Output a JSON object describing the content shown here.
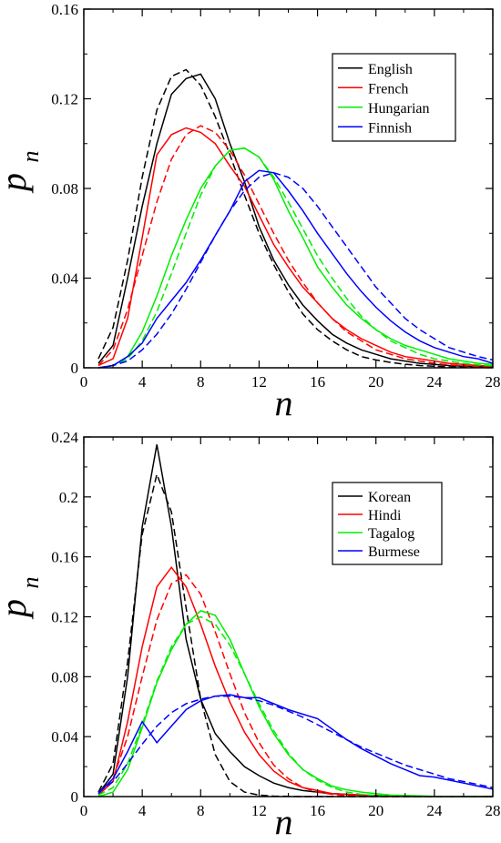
{
  "chart_data": [
    {
      "type": "line",
      "xlabel": "n",
      "ylabel": "p",
      "ylabel_sub": "n",
      "xlim": [
        0,
        28
      ],
      "ylim": [
        0,
        0.16
      ],
      "xticks": [
        0,
        4,
        8,
        12,
        16,
        20,
        24,
        28
      ],
      "yticks": [
        0,
        0.04,
        0.08,
        0.12,
        0.16
      ],
      "xtick_labels": [
        "0",
        "4",
        "8",
        "12",
        "16",
        "20",
        "24",
        "28"
      ],
      "ytick_labels": [
        "0",
        "0.04",
        "0.08",
        "0.12",
        "0.16"
      ],
      "legend_position": "top-right",
      "series": [
        {
          "name": "English",
          "color": "#000000",
          "x": [
            1,
            2,
            3,
            4,
            5,
            6,
            7,
            8,
            9,
            10,
            11,
            12,
            13,
            14,
            15,
            16,
            17,
            18,
            19,
            20,
            21,
            22,
            23,
            24,
            25,
            26,
            27,
            28
          ],
          "y": [
            0.002,
            0.01,
            0.04,
            0.072,
            0.1,
            0.122,
            0.129,
            0.131,
            0.12,
            0.1,
            0.083,
            0.063,
            0.048,
            0.037,
            0.028,
            0.021,
            0.015,
            0.011,
            0.008,
            0.006,
            0.004,
            0.003,
            0.002,
            0.0015,
            0.001,
            0.0007,
            0.0005,
            0.0003
          ],
          "fit": [
            0.004,
            0.018,
            0.048,
            0.085,
            0.115,
            0.13,
            0.133,
            0.126,
            0.112,
            0.095,
            0.077,
            0.06,
            0.046,
            0.034,
            0.024,
            0.017,
            0.012,
            0.008,
            0.005,
            0.0035,
            0.0024,
            0.0016,
            0.001,
            0.0007,
            0.0004,
            0.0003,
            0.0002,
            0.0001
          ]
        },
        {
          "name": "French",
          "color": "#ff0000",
          "x": [
            1,
            2,
            3,
            4,
            5,
            6,
            7,
            8,
            9,
            10,
            11,
            12,
            13,
            14,
            15,
            16,
            17,
            18,
            19,
            20,
            21,
            22,
            23,
            24,
            25,
            26,
            27,
            28
          ],
          "y": [
            0.001,
            0.004,
            0.022,
            0.058,
            0.095,
            0.104,
            0.107,
            0.105,
            0.1,
            0.09,
            0.081,
            0.068,
            0.055,
            0.045,
            0.036,
            0.029,
            0.022,
            0.017,
            0.013,
            0.01,
            0.007,
            0.005,
            0.004,
            0.003,
            0.002,
            0.0015,
            0.001,
            0.0007
          ],
          "fit": [
            0.001,
            0.008,
            0.026,
            0.05,
            0.074,
            0.093,
            0.104,
            0.108,
            0.105,
            0.097,
            0.086,
            0.073,
            0.06,
            0.048,
            0.038,
            0.029,
            0.022,
            0.016,
            0.012,
            0.008,
            0.006,
            0.004,
            0.003,
            0.002,
            0.0013,
            0.0009,
            0.0006,
            0.0004
          ]
        },
        {
          "name": "Hungarian",
          "color": "#00ee00",
          "x": [
            1,
            2,
            3,
            4,
            5,
            6,
            7,
            8,
            9,
            10,
            11,
            12,
            13,
            14,
            15,
            16,
            17,
            18,
            19,
            20,
            21,
            22,
            23,
            24,
            25,
            26,
            27,
            28
          ],
          "y": [
            0.0,
            0.001,
            0.005,
            0.016,
            0.032,
            0.05,
            0.066,
            0.08,
            0.09,
            0.097,
            0.098,
            0.094,
            0.084,
            0.07,
            0.058,
            0.045,
            0.036,
            0.028,
            0.022,
            0.017,
            0.013,
            0.01,
            0.008,
            0.006,
            0.004,
            0.003,
            0.002,
            0.0015
          ],
          "fit": [
            0.0,
            0.001,
            0.004,
            0.012,
            0.025,
            0.042,
            0.06,
            0.077,
            0.09,
            0.097,
            0.098,
            0.094,
            0.085,
            0.074,
            0.062,
            0.05,
            0.04,
            0.031,
            0.023,
            0.017,
            0.012,
            0.009,
            0.006,
            0.004,
            0.003,
            0.002,
            0.0013,
            0.0009
          ]
        },
        {
          "name": "Finnish",
          "color": "#0000ff",
          "x": [
            1,
            2,
            3,
            4,
            5,
            6,
            7,
            8,
            9,
            10,
            11,
            12,
            13,
            14,
            15,
            16,
            17,
            18,
            19,
            20,
            21,
            22,
            23,
            24,
            25,
            26,
            27,
            28
          ],
          "y": [
            0.0,
            0.001,
            0.005,
            0.011,
            0.022,
            0.03,
            0.038,
            0.048,
            0.059,
            0.07,
            0.083,
            0.088,
            0.087,
            0.079,
            0.07,
            0.06,
            0.051,
            0.042,
            0.034,
            0.027,
            0.021,
            0.016,
            0.012,
            0.009,
            0.007,
            0.005,
            0.004,
            0.002
          ],
          "fit": [
            0.0,
            0.001,
            0.003,
            0.008,
            0.015,
            0.024,
            0.035,
            0.047,
            0.059,
            0.07,
            0.079,
            0.085,
            0.087,
            0.085,
            0.08,
            0.072,
            0.063,
            0.054,
            0.045,
            0.036,
            0.029,
            0.022,
            0.017,
            0.013,
            0.009,
            0.007,
            0.005,
            0.0035
          ]
        }
      ]
    },
    {
      "type": "line",
      "xlabel": "n",
      "ylabel": "p",
      "ylabel_sub": "n",
      "xlim": [
        0,
        28
      ],
      "ylim": [
        0,
        0.24
      ],
      "xticks": [
        0,
        4,
        8,
        12,
        16,
        20,
        24,
        28
      ],
      "yticks": [
        0,
        0.04,
        0.08,
        0.12,
        0.16,
        0.2,
        0.24
      ],
      "xtick_labels": [
        "0",
        "4",
        "8",
        "12",
        "16",
        "20",
        "24",
        "28"
      ],
      "ytick_labels": [
        "0",
        "0.04",
        "0.08",
        "0.12",
        "0.16",
        "0.2",
        "0.24"
      ],
      "legend_position": "top-right",
      "series": [
        {
          "name": "Korean",
          "color": "#000000",
          "x": [
            1,
            2,
            3,
            4,
            5,
            6,
            7,
            8,
            9,
            10,
            11,
            12,
            13,
            14,
            15,
            16,
            17,
            18,
            19,
            20,
            21,
            22,
            23,
            24,
            25,
            26,
            27,
            28
          ],
          "y": [
            0.002,
            0.015,
            0.08,
            0.18,
            0.235,
            0.18,
            0.105,
            0.065,
            0.042,
            0.03,
            0.02,
            0.014,
            0.009,
            0.006,
            0.004,
            0.003,
            0.002,
            0.0015,
            0.001,
            0.0007,
            0.0005,
            0.0003,
            0.0002,
            0.0001,
            0.0001,
            0.0,
            0.0,
            0.0
          ],
          "fit": [
            0.003,
            0.022,
            0.09,
            0.175,
            0.215,
            0.19,
            0.126,
            0.065,
            0.028,
            0.01,
            0.003,
            0.001,
            0.0003,
            0.0001,
            0.0,
            0.0,
            0.0,
            0.0,
            0.0,
            0.0,
            0.0,
            0.0,
            0.0,
            0.0,
            0.0,
            0.0,
            0.0,
            0.0
          ]
        },
        {
          "name": "Hindi",
          "color": "#ff0000",
          "x": [
            1,
            2,
            3,
            4,
            5,
            6,
            7,
            8,
            9,
            10,
            11,
            12,
            13,
            14,
            15,
            16,
            17,
            18,
            19,
            20,
            21,
            22,
            23,
            24,
            25,
            26,
            27,
            28
          ],
          "y": [
            0.001,
            0.01,
            0.05,
            0.1,
            0.14,
            0.153,
            0.14,
            0.115,
            0.087,
            0.063,
            0.043,
            0.028,
            0.017,
            0.01,
            0.006,
            0.004,
            0.002,
            0.0015,
            0.001,
            0.0005,
            0.0003,
            0.0002,
            0.0001,
            0.0,
            0.0,
            0.0,
            0.0,
            0.0
          ],
          "fit": [
            0.002,
            0.012,
            0.04,
            0.08,
            0.118,
            0.142,
            0.148,
            0.135,
            0.11,
            0.082,
            0.056,
            0.036,
            0.021,
            0.012,
            0.006,
            0.003,
            0.0015,
            0.0007,
            0.0003,
            0.0001,
            0.0,
            0.0,
            0.0,
            0.0,
            0.0,
            0.0,
            0.0,
            0.0
          ]
        },
        {
          "name": "Tagalog",
          "color": "#00ee00",
          "x": [
            1,
            2,
            3,
            4,
            5,
            6,
            7,
            8,
            9,
            10,
            11,
            12,
            13,
            14,
            15,
            16,
            17,
            18,
            19,
            20,
            21,
            22,
            23,
            24,
            25,
            26,
            27,
            28
          ],
          "y": [
            0.0,
            0.003,
            0.018,
            0.046,
            0.076,
            0.098,
            0.115,
            0.124,
            0.121,
            0.105,
            0.082,
            0.06,
            0.042,
            0.028,
            0.018,
            0.012,
            0.007,
            0.0045,
            0.003,
            0.002,
            0.001,
            0.0007,
            0.0004,
            0.0002,
            0.0001,
            0.0,
            0.0,
            0.0
          ],
          "fit": [
            0.001,
            0.006,
            0.022,
            0.048,
            0.077,
            0.1,
            0.115,
            0.12,
            0.115,
            0.101,
            0.082,
            0.062,
            0.044,
            0.029,
            0.018,
            0.011,
            0.006,
            0.003,
            0.0015,
            0.0007,
            0.0003,
            0.0001,
            0.0,
            0.0,
            0.0,
            0.0,
            0.0,
            0.0
          ]
        },
        {
          "name": "Burmese",
          "color": "#0000ff",
          "x": [
            1,
            2,
            3,
            4,
            5,
            6,
            7,
            8,
            9,
            10,
            11,
            12,
            13,
            14,
            15,
            16,
            17,
            18,
            19,
            20,
            21,
            22,
            23,
            24,
            25,
            26,
            27,
            28
          ],
          "y": [
            0.002,
            0.012,
            0.03,
            0.05,
            0.036,
            0.047,
            0.058,
            0.064,
            0.067,
            0.068,
            0.066,
            0.066,
            0.062,
            0.058,
            0.055,
            0.052,
            0.045,
            0.038,
            0.032,
            0.027,
            0.022,
            0.018,
            0.014,
            0.013,
            0.011,
            0.009,
            0.007,
            0.005
          ],
          "fit": [
            0.003,
            0.01,
            0.022,
            0.035,
            0.047,
            0.056,
            0.062,
            0.065,
            0.067,
            0.067,
            0.066,
            0.064,
            0.061,
            0.057,
            0.053,
            0.048,
            0.043,
            0.038,
            0.033,
            0.029,
            0.025,
            0.021,
            0.018,
            0.015,
            0.012,
            0.01,
            0.008,
            0.006
          ]
        }
      ]
    }
  ]
}
